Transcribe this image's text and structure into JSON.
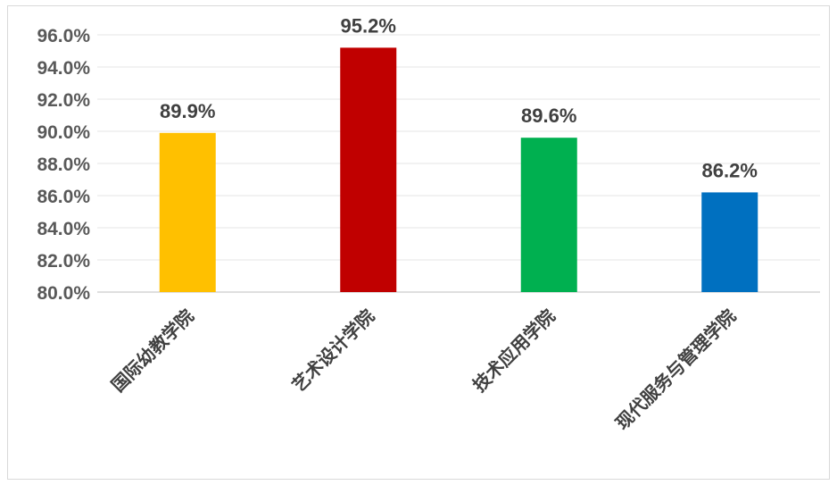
{
  "chart_data": {
    "type": "bar",
    "title": "",
    "xlabel": "",
    "ylabel": "",
    "categories": [
      "国际幼教学院",
      "艺术设计学院",
      "技术应用学院",
      "现代服务与管理学院"
    ],
    "values": [
      89.9,
      95.2,
      89.6,
      86.2
    ],
    "value_labels": [
      "89.9%",
      "95.2%",
      "89.6%",
      "86.2%"
    ],
    "colors": [
      "#ffc000",
      "#c00000",
      "#00b050",
      "#0070c0"
    ],
    "ylim": [
      80,
      96
    ],
    "yticks": [
      80,
      82,
      84,
      86,
      88,
      90,
      92,
      94,
      96
    ],
    "ytick_labels": [
      "80.0%",
      "82.0%",
      "84.0%",
      "86.0%",
      "88.0%",
      "90.0%",
      "92.0%",
      "94.0%",
      "96.0%"
    ],
    "grid": true,
    "legend": "none"
  }
}
